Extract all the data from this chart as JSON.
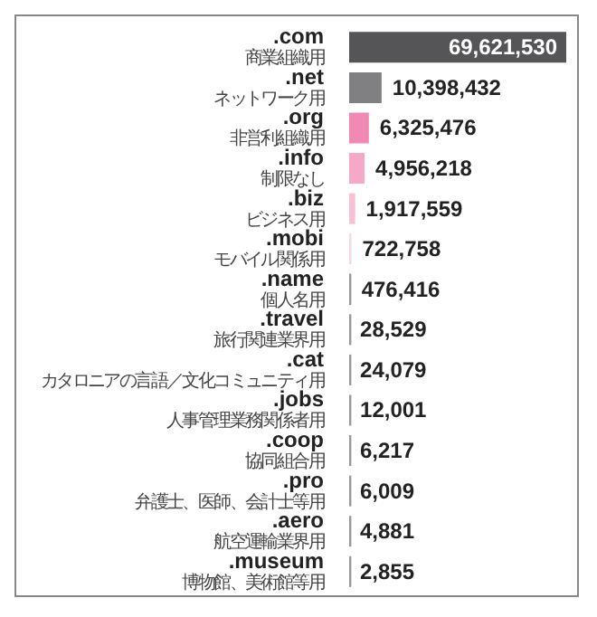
{
  "chart_data": {
    "type": "bar",
    "orientation": "horizontal",
    "categories": [
      ".com\n商業組織用",
      ".net\nネットワーク用",
      ".org\n非営利組織用",
      ".info\n制限なし",
      ".biz\nビジネス用",
      ".mobi\nモバイル関係用",
      ".name\n個人名用",
      ".travel\n旅行関連業界用",
      ".cat\nカタロニアの言語／文化コミュニティ用",
      ".jobs\n人事管理業務関係者用",
      ".coop\n協同組合用",
      ".pro\n弁護士、医師、会計士等用",
      ".aero\n航空運輸業界用",
      ".museum\n博物館、美術館等用"
    ],
    "values": [
      69621530,
      10398432,
      6325476,
      4956218,
      1917559,
      722758,
      476416,
      28529,
      24079,
      12001,
      6217,
      6009,
      4881,
      2855
    ],
    "value_labels": [
      "69,621,530",
      "10,398,432",
      "6,325,476",
      "4,956,218",
      "1,917,559",
      "722,758",
      "476,416",
      "28,529",
      "24,079",
      "12,001",
      "6,217",
      "6,009",
      "4,881",
      "2,855"
    ],
    "colors": [
      "#555558",
      "#808083",
      "#f08ab5",
      "#f5a8c8",
      "#f8c0d8",
      "#f9d5e5",
      "#231f20",
      "#999999",
      "#999999",
      "#999999",
      "#999999",
      "#999999",
      "#999999",
      "#999999"
    ]
  }
}
